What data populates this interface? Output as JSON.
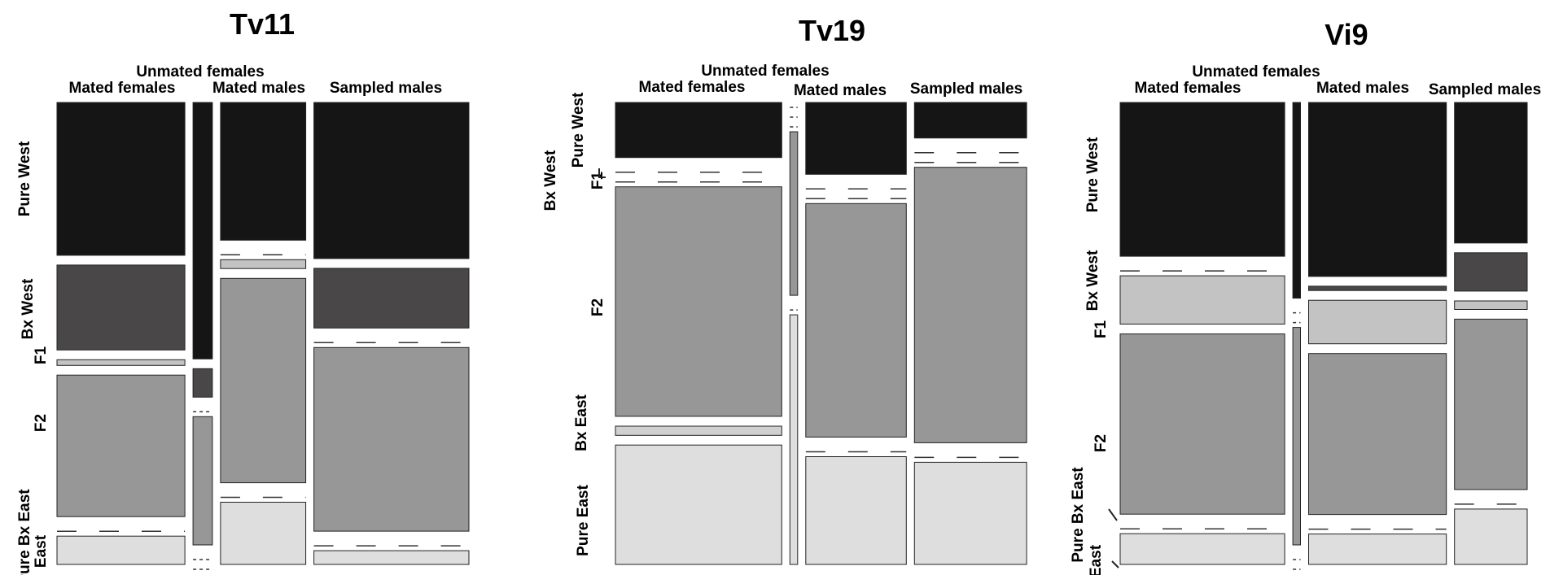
{
  "chart_data": [
    {
      "type": "mosaic",
      "title": "Tv11",
      "column_header_top": "Unmated females",
      "columns": [
        "Mated females",
        "Mated males",
        "Sampled males"
      ],
      "row_labels": [
        "Pure West",
        "Bx West",
        "F1",
        "F2",
        "Pure Bx East",
        "East"
      ],
      "categories": [
        "Pure West",
        "Bx West",
        "F1",
        "F2",
        "Bx East",
        "Pure East"
      ],
      "column_shares": {
        "Mated females": 0.33,
        "Unmated females": 0.05,
        "Mated males": 0.22,
        "Sampled males": 0.4
      },
      "series": [
        {
          "name": "Mated females",
          "values": [
            0.27,
            0.15,
            0.01,
            0.25,
            0.0,
            0.05
          ]
        },
        {
          "name": "Unmated females",
          "values": [
            0.54,
            0.06,
            0.0,
            0.27,
            0.0,
            0.0
          ]
        },
        {
          "name": "Mated males",
          "values": [
            0.31,
            0.0,
            0.02,
            0.46,
            0.0,
            0.14
          ]
        },
        {
          "name": "Sampled males",
          "values": [
            0.34,
            0.13,
            0.0,
            0.4,
            0.0,
            0.03
          ]
        }
      ]
    },
    {
      "type": "mosaic",
      "title": "Tv19",
      "column_header_top": "Unmated females",
      "columns": [
        "Mated females",
        "Mated males",
        "Sampled males"
      ],
      "row_labels": [
        "Pure West",
        "Bx West",
        "F1",
        "F2",
        "Bx East",
        "Pure East"
      ],
      "categories": [
        "Pure West",
        "Bx West",
        "F1",
        "F2",
        "Bx East",
        "Pure East"
      ],
      "column_shares": {
        "Mated females": 0.43,
        "Unmated females": 0.02,
        "Mated males": 0.26,
        "Sampled males": 0.29
      },
      "series": [
        {
          "name": "Mated females",
          "values": [
            0.12,
            0.0,
            0.0,
            0.5,
            0.02,
            0.26
          ]
        },
        {
          "name": "Unmated females",
          "values": [
            0.0,
            0.0,
            0.0,
            0.38,
            0.0,
            0.58
          ]
        },
        {
          "name": "Mated males",
          "values": [
            0.16,
            0.0,
            0.0,
            0.52,
            0.0,
            0.24
          ]
        },
        {
          "name": "Sampled males",
          "values": [
            0.08,
            0.0,
            0.0,
            0.62,
            0.0,
            0.23
          ]
        }
      ]
    },
    {
      "type": "mosaic",
      "title": "Vi9",
      "column_header_top": "Unmated females",
      "columns": [
        "Mated females",
        "Mated males",
        "Sampled males"
      ],
      "row_labels": [
        "Pure West",
        "Bx West",
        "F1",
        "F2",
        "Pure Bx East",
        "East"
      ],
      "categories": [
        "Pure West",
        "Bx West",
        "F1",
        "F2",
        "Bx East",
        "Pure East"
      ],
      "column_shares": {
        "Mated females": 0.43,
        "Unmated females": 0.02,
        "Mated males": 0.36,
        "Sampled males": 0.19
      },
      "series": [
        {
          "name": "Mated females",
          "values": [
            0.35,
            0.0,
            0.11,
            0.41,
            0.0,
            0.07
          ]
        },
        {
          "name": "Unmated females",
          "values": [
            0.45,
            0.0,
            0.0,
            0.5,
            0.0,
            0.0
          ]
        },
        {
          "name": "Mated males",
          "values": [
            0.4,
            0.01,
            0.1,
            0.37,
            0.0,
            0.07
          ]
        },
        {
          "name": "Sampled males",
          "values": [
            0.33,
            0.09,
            0.02,
            0.4,
            0.0,
            0.13
          ]
        }
      ]
    }
  ],
  "colors": {
    "Pure West": "#151515",
    "Bx West": "#4a4748",
    "F1": "#c3c3c3",
    "F2": "#979797",
    "Bx East": "#d0d0d0",
    "Pure East": "#dedede",
    "stroke": "#222222",
    "gap_dash": "#333333"
  }
}
